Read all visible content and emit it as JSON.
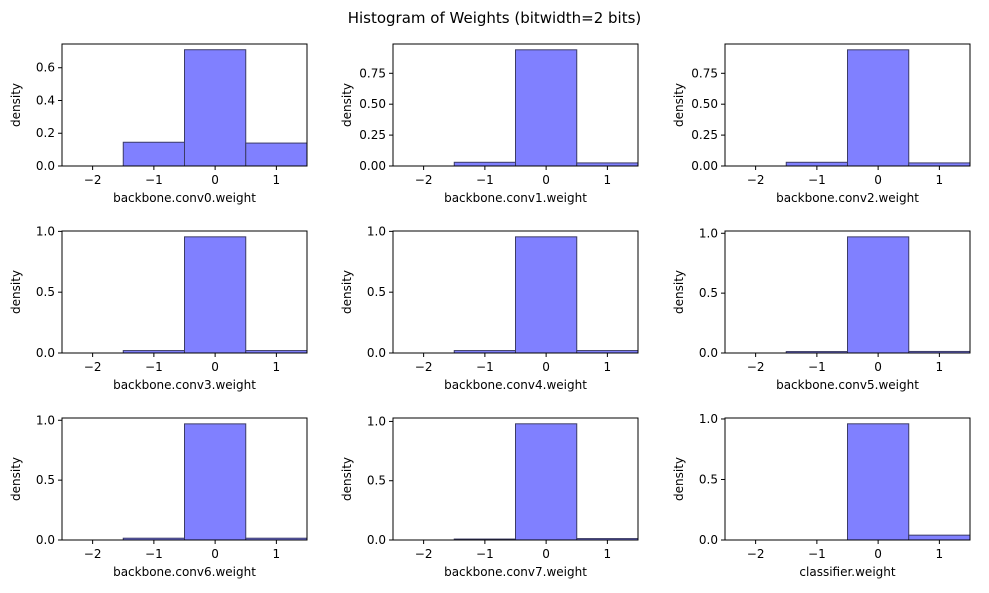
{
  "figure": {
    "title": "Histogram of Weights (bitwidth=2 bits)"
  },
  "chart_data": [
    {
      "type": "bar",
      "xlabel": "backbone.conv0.weight",
      "ylabel": "density",
      "bin_edges": [
        -1.5,
        -0.5,
        0.5,
        1.5
      ],
      "values": [
        0.145,
        0.71,
        0.14
      ],
      "xlim": [
        -2.5,
        1.5
      ],
      "ylim": [
        0,
        0.745
      ],
      "xticks": [
        -2,
        -1,
        0,
        1
      ],
      "yticks": [
        0.0,
        0.2,
        0.4,
        0.6
      ],
      "ytick_labels": [
        "0.0",
        "0.2",
        "0.4",
        "0.6"
      ],
      "grid": false,
      "color": "#8080ff"
    },
    {
      "type": "bar",
      "xlabel": "backbone.conv1.weight",
      "ylabel": "density",
      "bin_edges": [
        -1.5,
        -0.5,
        0.5,
        1.5
      ],
      "values": [
        0.03,
        0.94,
        0.025
      ],
      "xlim": [
        -2.5,
        1.5
      ],
      "ylim": [
        0,
        0.987
      ],
      "xticks": [
        -2,
        -1,
        0,
        1
      ],
      "yticks": [
        0.0,
        0.25,
        0.5,
        0.75
      ],
      "ytick_labels": [
        "0.00",
        "0.25",
        "0.50",
        "0.75"
      ],
      "grid": false,
      "color": "#8080ff"
    },
    {
      "type": "bar",
      "xlabel": "backbone.conv2.weight",
      "ylabel": "density",
      "bin_edges": [
        -1.5,
        -0.5,
        0.5,
        1.5
      ],
      "values": [
        0.03,
        0.94,
        0.025
      ],
      "xlim": [
        -2.5,
        1.5
      ],
      "ylim": [
        0,
        0.987
      ],
      "xticks": [
        -2,
        -1,
        0,
        1
      ],
      "yticks": [
        0.0,
        0.25,
        0.5,
        0.75
      ],
      "ytick_labels": [
        "0.00",
        "0.25",
        "0.50",
        "0.75"
      ],
      "grid": false,
      "color": "#8080ff"
    },
    {
      "type": "bar",
      "xlabel": "backbone.conv3.weight",
      "ylabel": "density",
      "bin_edges": [
        -1.5,
        -0.5,
        0.5,
        1.5
      ],
      "values": [
        0.02,
        0.955,
        0.02
      ],
      "xlim": [
        -2.5,
        1.5
      ],
      "ylim": [
        0,
        1.003
      ],
      "xticks": [
        -2,
        -1,
        0,
        1
      ],
      "yticks": [
        0.0,
        0.5,
        1.0
      ],
      "ytick_labels": [
        "0.0",
        "0.5",
        "1.0"
      ],
      "grid": false,
      "color": "#8080ff"
    },
    {
      "type": "bar",
      "xlabel": "backbone.conv4.weight",
      "ylabel": "density",
      "bin_edges": [
        -1.5,
        -0.5,
        0.5,
        1.5
      ],
      "values": [
        0.02,
        0.955,
        0.02
      ],
      "xlim": [
        -2.5,
        1.5
      ],
      "ylim": [
        0,
        1.003
      ],
      "xticks": [
        -2,
        -1,
        0,
        1
      ],
      "yticks": [
        0.0,
        0.5,
        1.0
      ],
      "ytick_labels": [
        "0.0",
        "0.5",
        "1.0"
      ],
      "grid": false,
      "color": "#8080ff"
    },
    {
      "type": "bar",
      "xlabel": "backbone.conv5.weight",
      "ylabel": "density",
      "bin_edges": [
        -1.5,
        -0.5,
        0.5,
        1.5
      ],
      "values": [
        0.012,
        0.97,
        0.013
      ],
      "xlim": [
        -2.5,
        1.5
      ],
      "ylim": [
        0,
        1.019
      ],
      "xticks": [
        -2,
        -1,
        0,
        1
      ],
      "yticks": [
        0.0,
        0.5,
        1.0
      ],
      "ytick_labels": [
        "0.0",
        "0.5",
        "1.0"
      ],
      "grid": false,
      "color": "#8080ff"
    },
    {
      "type": "bar",
      "xlabel": "backbone.conv6.weight",
      "ylabel": "density",
      "bin_edges": [
        -1.5,
        -0.5,
        0.5,
        1.5
      ],
      "values": [
        0.015,
        0.97,
        0.015
      ],
      "xlim": [
        -2.5,
        1.5
      ],
      "ylim": [
        0,
        1.019
      ],
      "xticks": [
        -2,
        -1,
        0,
        1
      ],
      "yticks": [
        0.0,
        0.5,
        1.0
      ],
      "ytick_labels": [
        "0.0",
        "0.5",
        "1.0"
      ],
      "grid": false,
      "color": "#8080ff"
    },
    {
      "type": "bar",
      "xlabel": "backbone.conv7.weight",
      "ylabel": "density",
      "bin_edges": [
        -1.5,
        -0.5,
        0.5,
        1.5
      ],
      "values": [
        0.008,
        0.98,
        0.012
      ],
      "xlim": [
        -2.5,
        1.5
      ],
      "ylim": [
        0,
        1.029
      ],
      "xticks": [
        -2,
        -1,
        0,
        1
      ],
      "yticks": [
        0.0,
        0.5,
        1.0
      ],
      "ytick_labels": [
        "0.0",
        "0.5",
        "1.0"
      ],
      "grid": false,
      "color": "#8080ff"
    },
    {
      "type": "bar",
      "xlabel": "classifier.weight",
      "ylabel": "density",
      "bin_edges": [
        -1.5,
        -0.5,
        0.5,
        1.5
      ],
      "values": [
        0.0,
        0.96,
        0.04
      ],
      "xlim": [
        -2.5,
        1.5
      ],
      "ylim": [
        0,
        1.008
      ],
      "xticks": [
        -2,
        -1,
        0,
        1
      ],
      "yticks": [
        0.0,
        0.5,
        1.0
      ],
      "ytick_labels": [
        "0.0",
        "0.5",
        "1.0"
      ],
      "grid": false,
      "color": "#8080ff"
    }
  ]
}
